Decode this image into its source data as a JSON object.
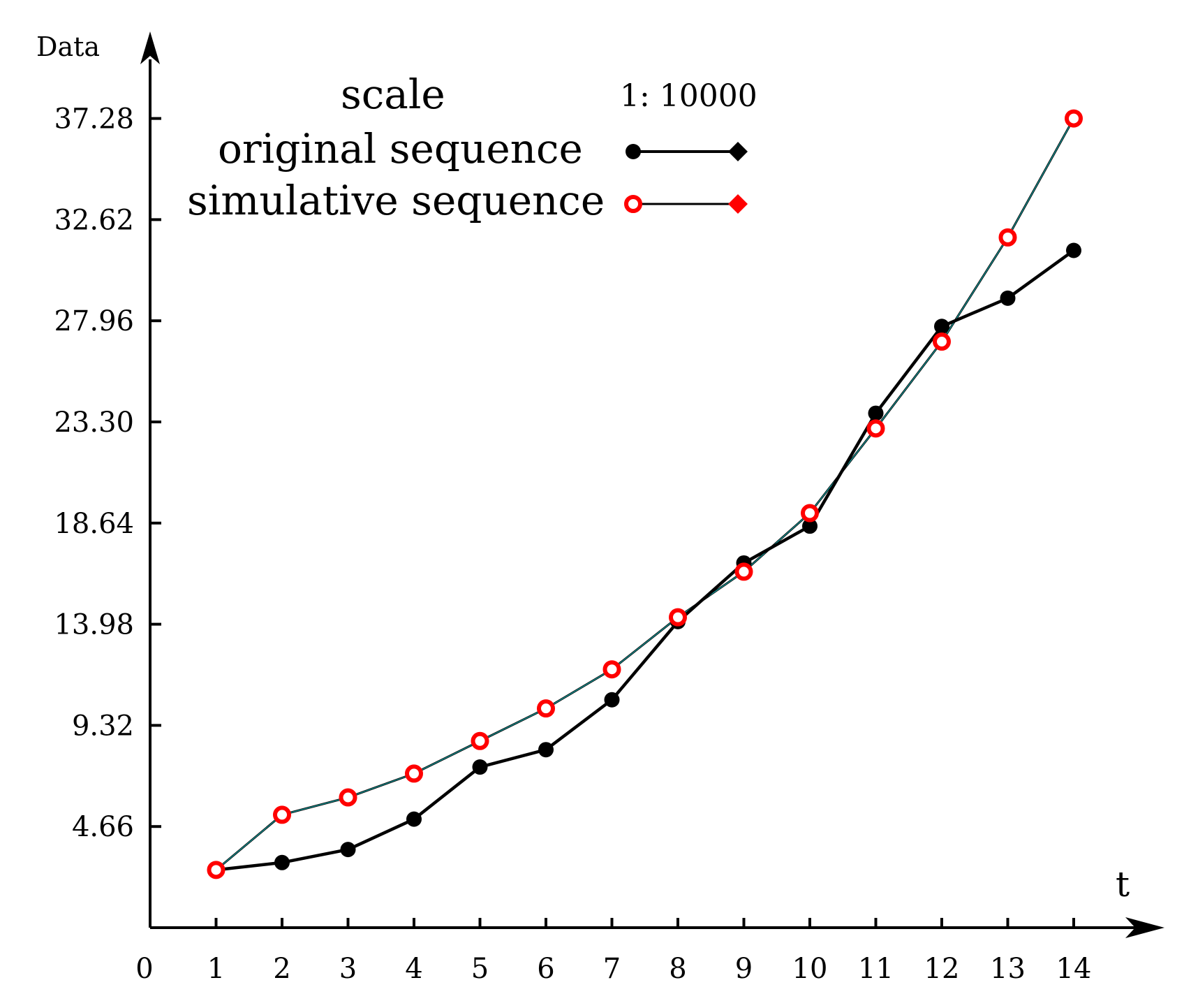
{
  "chart_data": {
    "type": "line",
    "xlabel": "t",
    "ylabel": "Data",
    "x": [
      1,
      2,
      3,
      4,
      5,
      6,
      7,
      8,
      9,
      10,
      11,
      12,
      13,
      14
    ],
    "x_ticks": [
      0,
      1,
      2,
      3,
      4,
      5,
      6,
      7,
      8,
      9,
      10,
      11,
      12,
      13,
      14
    ],
    "x_tick_labels": [
      "0",
      "1",
      "2",
      "3",
      "4",
      "5",
      "6",
      "7",
      "8",
      "9",
      "10",
      "11",
      "12",
      "13",
      "14"
    ],
    "xlim": [
      0,
      14
    ],
    "y_ticks": [
      4.66,
      9.32,
      13.98,
      18.64,
      23.3,
      27.96,
      32.62,
      37.28
    ],
    "y_tick_labels": [
      "4.66",
      "9.32",
      "13.98",
      "18.64",
      "23.30",
      "27.96",
      "32.62",
      "37.28"
    ],
    "ylim": [
      0,
      40
    ],
    "grid": false,
    "legend_position": "top-center",
    "scale_label": "scale",
    "scale_value": "1: 10000",
    "series": [
      {
        "name": "original sequence",
        "color": "#000000",
        "marker_color": "#000000",
        "values": [
          2.66,
          3.0,
          3.6,
          5.0,
          7.4,
          8.2,
          10.5,
          14.1,
          16.8,
          18.5,
          23.7,
          27.7,
          29.0,
          31.2
        ]
      },
      {
        "name": "simulative sequence",
        "color": "#000000",
        "marker_color": "#ff0000",
        "values": [
          2.66,
          5.2,
          6.0,
          7.1,
          8.6,
          10.1,
          11.9,
          14.3,
          16.4,
          19.1,
          23.0,
          27.0,
          31.8,
          37.28
        ]
      }
    ]
  }
}
